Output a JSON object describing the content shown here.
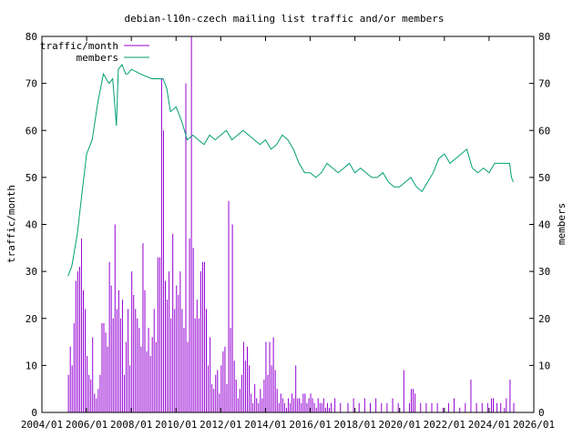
{
  "chart_data": {
    "type": "bar",
    "title": "debian-l10n-czech mailing list traffic and/or members",
    "ylabel": "traffic/month",
    "y2label": "members",
    "xlabel": "",
    "xlim": [
      "2004/01",
      "2026/01"
    ],
    "ylim": [
      0,
      80
    ],
    "y2lim": [
      0,
      80
    ],
    "grid": false,
    "legend_placement": "top-left",
    "x_ticks": [
      "2004/01",
      "2006/01",
      "2008/01",
      "2010/01",
      "2012/01",
      "2014/01",
      "2016/01",
      "2018/01",
      "2020/01",
      "2022/01",
      "2024/01",
      "2026/01"
    ],
    "y_ticks": [
      "0",
      "10",
      "20",
      "30",
      "40",
      "50",
      "60",
      "70",
      "80"
    ],
    "y2_ticks": [
      "0",
      "10",
      "20",
      "30",
      "40",
      "50",
      "60",
      "70",
      "80"
    ],
    "colors": {
      "traffic": "#9400d3",
      "members": "#009e73"
    },
    "series": [
      {
        "name": "traffic/month",
        "kind": "impulse",
        "x": [
          "2005/03",
          "2005/04",
          "2005/05",
          "2005/06",
          "2005/07",
          "2005/08",
          "2005/09",
          "2005/10",
          "2005/11",
          "2005/12",
          "2006/01",
          "2006/02",
          "2006/03",
          "2006/04",
          "2006/05",
          "2006/06",
          "2006/07",
          "2006/08",
          "2006/09",
          "2006/10",
          "2006/11",
          "2006/12",
          "2007/01",
          "2007/02",
          "2007/03",
          "2007/04",
          "2007/05",
          "2007/06",
          "2007/07",
          "2007/08",
          "2007/09",
          "2007/10",
          "2007/11",
          "2007/12",
          "2008/01",
          "2008/02",
          "2008/03",
          "2008/04",
          "2008/05",
          "2008/06",
          "2008/07",
          "2008/08",
          "2008/09",
          "2008/10",
          "2008/11",
          "2008/12",
          "2009/01",
          "2009/02",
          "2009/03",
          "2009/04",
          "2009/05",
          "2009/06",
          "2009/07",
          "2009/08",
          "2009/09",
          "2009/10",
          "2009/11",
          "2009/12",
          "2010/01",
          "2010/02",
          "2010/03",
          "2010/04",
          "2010/05",
          "2010/06",
          "2010/07",
          "2010/08",
          "2010/09",
          "2010/10",
          "2010/11",
          "2010/12",
          "2011/01",
          "2011/02",
          "2011/03",
          "2011/04",
          "2011/05",
          "2011/06",
          "2011/07",
          "2011/08",
          "2011/09",
          "2011/10",
          "2011/11",
          "2011/12",
          "2012/01",
          "2012/02",
          "2012/03",
          "2012/04",
          "2012/05",
          "2012/06",
          "2012/07",
          "2012/08",
          "2012/09",
          "2012/10",
          "2012/11",
          "2012/12",
          "2013/01",
          "2013/02",
          "2013/03",
          "2013/04",
          "2013/05",
          "2013/06",
          "2013/07",
          "2013/08",
          "2013/09",
          "2013/10",
          "2013/11",
          "2013/12",
          "2014/01",
          "2014/02",
          "2014/03",
          "2014/04",
          "2014/05",
          "2014/06",
          "2014/07",
          "2014/08",
          "2014/09",
          "2014/10",
          "2014/11",
          "2014/12",
          "2015/01",
          "2015/02",
          "2015/03",
          "2015/04",
          "2015/05",
          "2015/06",
          "2015/07",
          "2015/08",
          "2015/09",
          "2015/10",
          "2015/11",
          "2015/12",
          "2016/01",
          "2016/02",
          "2016/03",
          "2016/04",
          "2016/05",
          "2016/06",
          "2016/07",
          "2016/08",
          "2016/09",
          "2016/10",
          "2016/11",
          "2016/12",
          "2017/02",
          "2017/05",
          "2017/09",
          "2017/12",
          "2018/03",
          "2018/06",
          "2018/09",
          "2018/12",
          "2019/03",
          "2019/06",
          "2019/09",
          "2019/12",
          "2020/03",
          "2020/06",
          "2020/07",
          "2020/08",
          "2020/09",
          "2020/12",
          "2021/03",
          "2021/06",
          "2021/09",
          "2021/12",
          "2022/03",
          "2022/06",
          "2022/09",
          "2022/12",
          "2023/03",
          "2023/06",
          "2023/09",
          "2023/12",
          "2024/02",
          "2024/03",
          "2024/05",
          "2024/07",
          "2024/09",
          "2024/10",
          "2024/12",
          "2025/02"
        ],
        "values": [
          8,
          14,
          10,
          19,
          28,
          30,
          31,
          37,
          26,
          22,
          12,
          8,
          7,
          16,
          4,
          3,
          5,
          8,
          19,
          19,
          17,
          14,
          32,
          27,
          20,
          40,
          22,
          26,
          20,
          24,
          8,
          15,
          22,
          10,
          30,
          25,
          22,
          20,
          18,
          14,
          36,
          26,
          13,
          18,
          12,
          16,
          22,
          15,
          33,
          33,
          71,
          60,
          28,
          24,
          30,
          20,
          38,
          22,
          27,
          25,
          30,
          22,
          18,
          70,
          15,
          37,
          80,
          35,
          20,
          24,
          20,
          30,
          32,
          32,
          22,
          10,
          16,
          6,
          5,
          8,
          9,
          4,
          10,
          13,
          14,
          6,
          45,
          18,
          40,
          11,
          7,
          3,
          5,
          8,
          15,
          11,
          14,
          10,
          4,
          2,
          6,
          3,
          2,
          5,
          3,
          7,
          15,
          8,
          15,
          10,
          16,
          9,
          5,
          2,
          4,
          3,
          2,
          1,
          3,
          2,
          4,
          3,
          10,
          3,
          3,
          2,
          4,
          4,
          2,
          3,
          4,
          3,
          2,
          1,
          3,
          2,
          2,
          3,
          1,
          2,
          1,
          2,
          3,
          2,
          2,
          3,
          2,
          3,
          2,
          3,
          2,
          2,
          3,
          2,
          9,
          2,
          5,
          5,
          4,
          2,
          2,
          2,
          2,
          1,
          2,
          3,
          1,
          2,
          7,
          2,
          2,
          2,
          3,
          3,
          2,
          2,
          1,
          3,
          7,
          2
        ]
      },
      {
        "name": "members",
        "kind": "line",
        "x": [
          "2005/03",
          "2005/05",
          "2005/08",
          "2005/10",
          "2006/01",
          "2006/04",
          "2006/07",
          "2006/10",
          "2007/01",
          "2007/03",
          "2007/05",
          "2007/06",
          "2007/08",
          "2007/10",
          "2007/11",
          "2008/01",
          "2008/06",
          "2008/12",
          "2009/06",
          "2009/08",
          "2009/10",
          "2010/01",
          "2010/04",
          "2010/07",
          "2010/10",
          "2011/01",
          "2011/04",
          "2011/07",
          "2011/10",
          "2012/01",
          "2012/04",
          "2012/07",
          "2012/10",
          "2013/01",
          "2013/04",
          "2013/07",
          "2013/10",
          "2014/01",
          "2014/04",
          "2014/07",
          "2014/10",
          "2015/01",
          "2015/04",
          "2015/07",
          "2015/10",
          "2016/01",
          "2016/04",
          "2016/07",
          "2016/10",
          "2017/01",
          "2017/04",
          "2017/07",
          "2017/10",
          "2018/01",
          "2018/04",
          "2018/07",
          "2018/10",
          "2019/01",
          "2019/04",
          "2019/07",
          "2019/10",
          "2020/01",
          "2020/04",
          "2020/07",
          "2020/10",
          "2021/01",
          "2021/04",
          "2021/07",
          "2021/10",
          "2022/01",
          "2022/04",
          "2022/07",
          "2022/10",
          "2023/01",
          "2023/04",
          "2023/07",
          "2023/10",
          "2024/01",
          "2024/04",
          "2024/07",
          "2024/10",
          "2024/12",
          "2025/01",
          "2025/02"
        ],
        "values": [
          29,
          31,
          38,
          45,
          55,
          58,
          66,
          72,
          70,
          71,
          61,
          73,
          74,
          72,
          72,
          73,
          72,
          71,
          71,
          69,
          64,
          65,
          62,
          58,
          59,
          58,
          57,
          59,
          58,
          59,
          60,
          58,
          59,
          60,
          59,
          58,
          57,
          58,
          56,
          57,
          59,
          58,
          56,
          53,
          51,
          51,
          50,
          51,
          53,
          52,
          51,
          52,
          53,
          51,
          52,
          51,
          50,
          50,
          51,
          49,
          48,
          48,
          49,
          50,
          48,
          47,
          49,
          51,
          54,
          55,
          53,
          54,
          55,
          56,
          52,
          51,
          52,
          51,
          53,
          53,
          53,
          53,
          50,
          49
        ]
      }
    ]
  }
}
